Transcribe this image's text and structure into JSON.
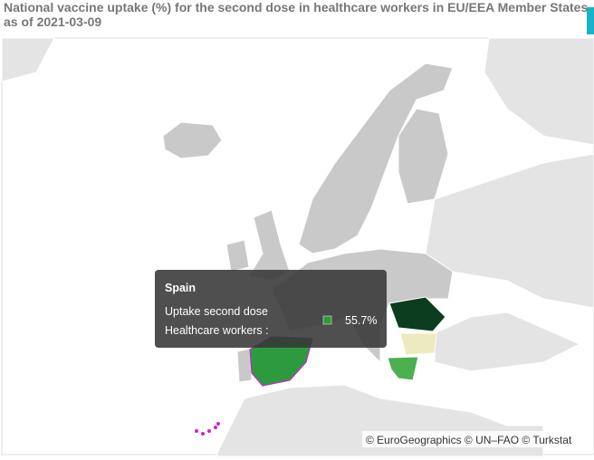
{
  "title": [
    "National vaccine uptake (%) for the second dose in healthcare workers in EU/EEA Member States",
    "as of 2021-03-09"
  ],
  "tooltip": {
    "country": "Spain",
    "measure": "Uptake second dose",
    "group": "Healthcare workers :",
    "value": "55.7%"
  },
  "attribution": "© EuroGeographics © UN–FAO © Turkstat"
}
